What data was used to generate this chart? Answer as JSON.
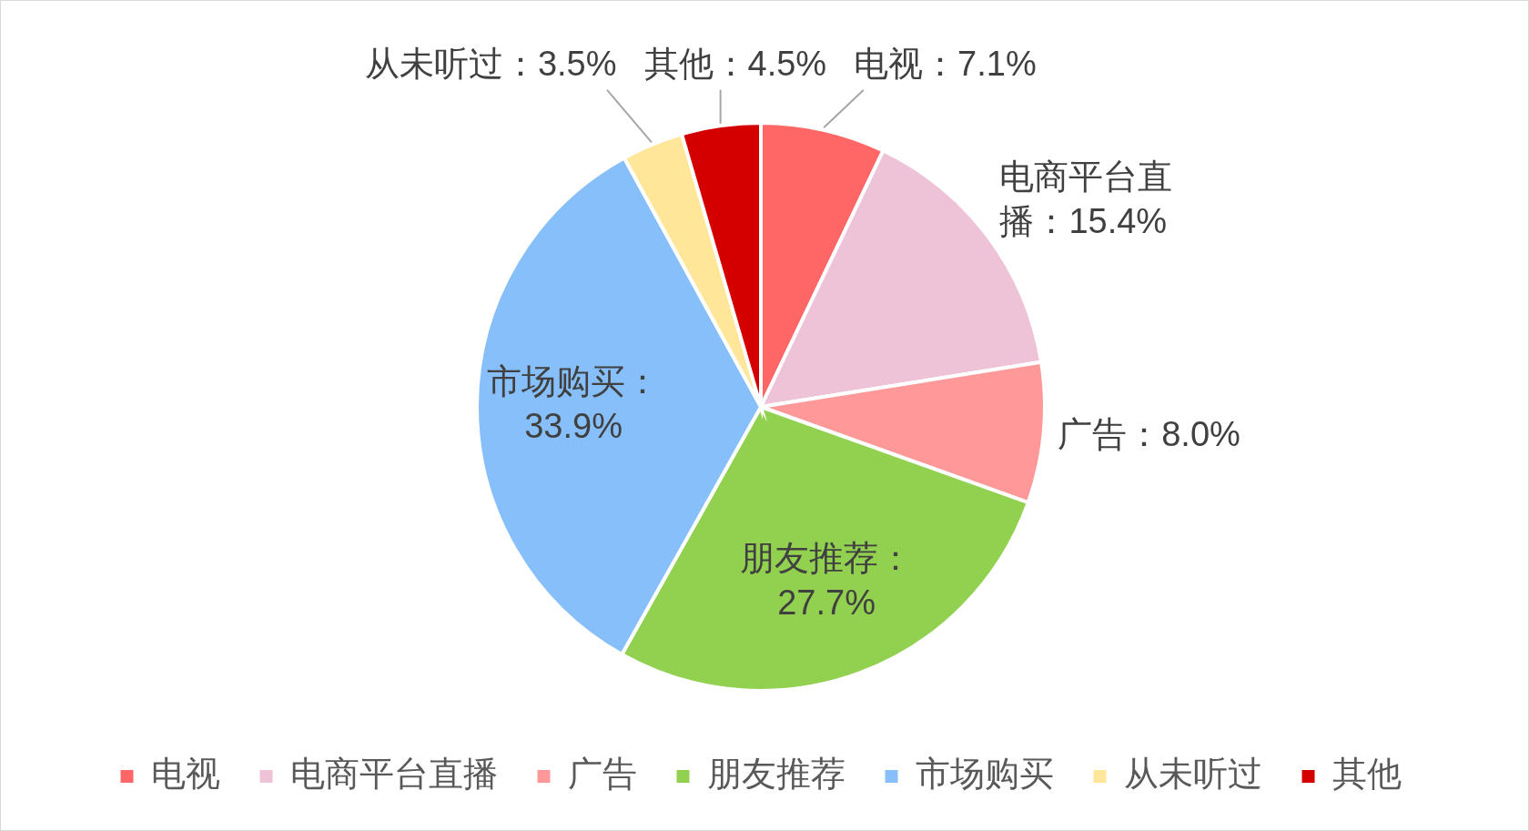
{
  "chart_data": {
    "type": "pie",
    "categories": [
      "电视",
      "电商平台直播",
      "广告",
      "朋友推荐",
      "市场购买",
      "从未听过",
      "其他"
    ],
    "values": [
      7.1,
      15.4,
      8.0,
      27.7,
      33.9,
      3.5,
      4.5
    ],
    "colors": [
      "#ff6666",
      "#eec3d8",
      "#ff9999",
      "#92d050",
      "#86bff9",
      "#ffe699",
      "#d40000"
    ],
    "value_labels": [
      "电视：7.1%",
      "电商平台直播：15.4%",
      "广告：8.0%",
      "朋友推荐：27.7%",
      "市场购买：33.9%",
      "从未听过：3.5%",
      "其他：4.5%"
    ],
    "legend": "bottom"
  }
}
